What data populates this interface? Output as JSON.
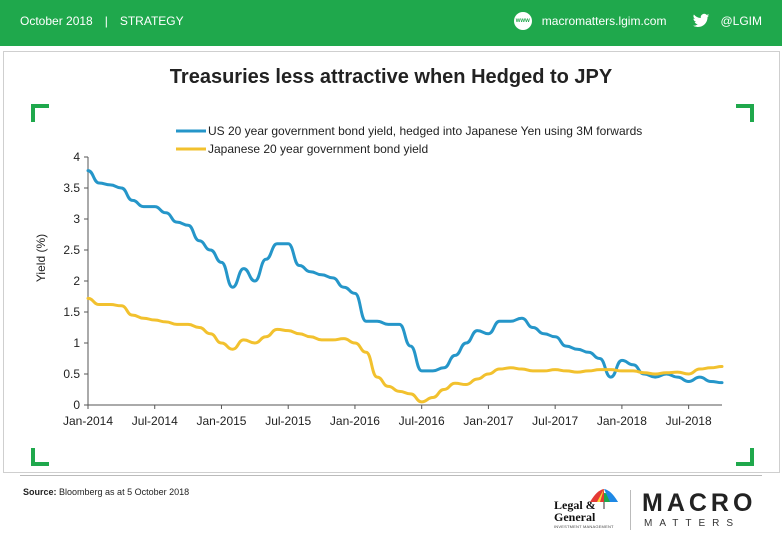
{
  "header": {
    "date": "October 2018",
    "separator": "|",
    "section": "STRATEGY",
    "web_icon_text": "www",
    "website": "macromatters.lgim.com",
    "twitter": "@LGIM"
  },
  "colors": {
    "brand_green": "#1fa84c",
    "us_series": "#2596c9",
    "jp_series": "#f2c12e"
  },
  "footer": {
    "source_label": "Source:",
    "source_text": "Bloomberg as at 5 October 2018",
    "lg_name_line1": "Legal &",
    "lg_name_line2": "General",
    "lg_sub": "INVESTMENT MANAGEMENT",
    "macro": "MACRO",
    "matters": "MATTERS"
  },
  "chart_data": {
    "type": "line",
    "title": "Treasuries less attractive when Hedged to JPY",
    "xlabel": "",
    "ylabel": "Yield (%)",
    "ylim": [
      0,
      4
    ],
    "yticks": [
      "0",
      "0.5",
      "1",
      "1.5",
      "2",
      "2.5",
      "3",
      "3.5",
      "4"
    ],
    "x_start": "Jan-2014",
    "x_end": "Oct-2018",
    "xticks": [
      "Jan-2014",
      "Jul-2014",
      "Jan-2015",
      "Jul-2015",
      "Jan-2016",
      "Jul-2016",
      "Jan-2017",
      "Jul-2017",
      "Jan-2018",
      "Jul-2018"
    ],
    "grid": false,
    "legend_position": "top",
    "series": [
      {
        "name": "US 20 year government bond yield, hedged into Japanese Yen using 3M forwards",
        "color": "#2596c9",
        "points": [
          [
            "Jan-2014",
            3.78
          ],
          [
            "Feb-2014",
            3.58
          ],
          [
            "Mar-2014",
            3.55
          ],
          [
            "Apr-2014",
            3.5
          ],
          [
            "May-2014",
            3.3
          ],
          [
            "Jun-2014",
            3.2
          ],
          [
            "Jul-2014",
            3.2
          ],
          [
            "Aug-2014",
            3.1
          ],
          [
            "Sep-2014",
            2.95
          ],
          [
            "Oct-2014",
            2.9
          ],
          [
            "Nov-2014",
            2.65
          ],
          [
            "Dec-2014",
            2.5
          ],
          [
            "Jan-2015",
            2.3
          ],
          [
            "Feb-2015",
            1.9
          ],
          [
            "Mar-2015",
            2.2
          ],
          [
            "Apr-2015",
            2.0
          ],
          [
            "May-2015",
            2.35
          ],
          [
            "Jun-2015",
            2.6
          ],
          [
            "Jul-2015",
            2.6
          ],
          [
            "Aug-2015",
            2.25
          ],
          [
            "Sep-2015",
            2.15
          ],
          [
            "Oct-2015",
            2.1
          ],
          [
            "Nov-2015",
            2.05
          ],
          [
            "Dec-2015",
            1.9
          ],
          [
            "Jan-2016",
            1.8
          ],
          [
            "Feb-2016",
            1.35
          ],
          [
            "Mar-2016",
            1.35
          ],
          [
            "Apr-2016",
            1.3
          ],
          [
            "May-2016",
            1.3
          ],
          [
            "Jun-2016",
            0.95
          ],
          [
            "Jul-2016",
            0.55
          ],
          [
            "Aug-2016",
            0.55
          ],
          [
            "Sep-2016",
            0.6
          ],
          [
            "Oct-2016",
            0.8
          ],
          [
            "Nov-2016",
            1.0
          ],
          [
            "Dec-2016",
            1.2
          ],
          [
            "Jan-2017",
            1.15
          ],
          [
            "Feb-2017",
            1.35
          ],
          [
            "Mar-2017",
            1.35
          ],
          [
            "Apr-2017",
            1.4
          ],
          [
            "May-2017",
            1.25
          ],
          [
            "Jun-2017",
            1.15
          ],
          [
            "Jul-2017",
            1.1
          ],
          [
            "Aug-2017",
            0.95
          ],
          [
            "Sep-2017",
            0.9
          ],
          [
            "Oct-2017",
            0.85
          ],
          [
            "Nov-2017",
            0.75
          ],
          [
            "Dec-2017",
            0.45
          ],
          [
            "Jan-2018",
            0.72
          ],
          [
            "Feb-2018",
            0.65
          ],
          [
            "Mar-2018",
            0.5
          ],
          [
            "Apr-2018",
            0.45
          ],
          [
            "May-2018",
            0.5
          ],
          [
            "Jun-2018",
            0.45
          ],
          [
            "Jul-2018",
            0.38
          ],
          [
            "Aug-2018",
            0.45
          ],
          [
            "Sep-2018",
            0.38
          ],
          [
            "Oct-2018",
            0.36
          ]
        ]
      },
      {
        "name": "Japanese 20 year government bond yield",
        "color": "#f2c12e",
        "points": [
          [
            "Jan-2014",
            1.72
          ],
          [
            "Feb-2014",
            1.62
          ],
          [
            "Mar-2014",
            1.62
          ],
          [
            "Apr-2014",
            1.6
          ],
          [
            "May-2014",
            1.45
          ],
          [
            "Jun-2014",
            1.4
          ],
          [
            "Jul-2014",
            1.37
          ],
          [
            "Aug-2014",
            1.34
          ],
          [
            "Sep-2014",
            1.3
          ],
          [
            "Oct-2014",
            1.3
          ],
          [
            "Nov-2014",
            1.25
          ],
          [
            "Dec-2014",
            1.15
          ],
          [
            "Jan-2015",
            1.0
          ],
          [
            "Feb-2015",
            0.9
          ],
          [
            "Mar-2015",
            1.05
          ],
          [
            "Apr-2015",
            1.0
          ],
          [
            "May-2015",
            1.1
          ],
          [
            "Jun-2015",
            1.22
          ],
          [
            "Jul-2015",
            1.2
          ],
          [
            "Aug-2015",
            1.15
          ],
          [
            "Sep-2015",
            1.1
          ],
          [
            "Oct-2015",
            1.05
          ],
          [
            "Nov-2015",
            1.05
          ],
          [
            "Dec-2015",
            1.07
          ],
          [
            "Jan-2016",
            1.0
          ],
          [
            "Feb-2016",
            0.85
          ],
          [
            "Mar-2016",
            0.45
          ],
          [
            "Apr-2016",
            0.3
          ],
          [
            "May-2016",
            0.22
          ],
          [
            "Jun-2016",
            0.18
          ],
          [
            "Jul-2016",
            0.05
          ],
          [
            "Aug-2016",
            0.12
          ],
          [
            "Sep-2016",
            0.25
          ],
          [
            "Oct-2016",
            0.35
          ],
          [
            "Nov-2016",
            0.33
          ],
          [
            "Dec-2016",
            0.42
          ],
          [
            "Jan-2017",
            0.5
          ],
          [
            "Feb-2017",
            0.58
          ],
          [
            "Mar-2017",
            0.6
          ],
          [
            "Apr-2017",
            0.58
          ],
          [
            "May-2017",
            0.55
          ],
          [
            "Jun-2017",
            0.55
          ],
          [
            "Jul-2017",
            0.57
          ],
          [
            "Aug-2017",
            0.55
          ],
          [
            "Sep-2017",
            0.53
          ],
          [
            "Oct-2017",
            0.55
          ],
          [
            "Nov-2017",
            0.57
          ],
          [
            "Dec-2017",
            0.57
          ],
          [
            "Jan-2018",
            0.55
          ],
          [
            "Feb-2018",
            0.55
          ],
          [
            "Mar-2018",
            0.52
          ],
          [
            "Apr-2018",
            0.5
          ],
          [
            "May-2018",
            0.52
          ],
          [
            "Jun-2018",
            0.53
          ],
          [
            "Jul-2018",
            0.5
          ],
          [
            "Aug-2018",
            0.58
          ],
          [
            "Sep-2018",
            0.6
          ],
          [
            "Oct-2018",
            0.62
          ]
        ]
      }
    ]
  }
}
